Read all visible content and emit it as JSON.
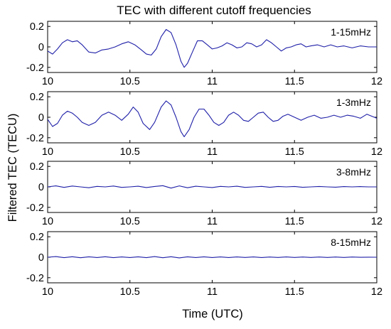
{
  "chart_data": {
    "type": "line",
    "title": "TEC with different cutoff frequencies",
    "xlabel": "Time (UTC)",
    "ylabel": "Filtered TEC (TECU)",
    "xlim": [
      10,
      12
    ],
    "ylim": [
      -0.25,
      0.25
    ],
    "x_ticks": [
      10,
      10.5,
      11,
      11.5,
      12
    ],
    "x_tick_labels": [
      "10",
      "10.5",
      "11",
      "11.5",
      "12"
    ],
    "y_ticks": [
      0.2,
      0,
      -0.2
    ],
    "y_tick_labels": [
      "0.2",
      "0",
      "-0.2"
    ],
    "line_color": "#1f1fa8",
    "grid": false,
    "legend": "none",
    "panels": [
      {
        "label": "1-15mHz",
        "points": [
          [
            10.0,
            -0.04
          ],
          [
            10.03,
            -0.07
          ],
          [
            10.06,
            -0.02
          ],
          [
            10.09,
            0.04
          ],
          [
            10.12,
            0.07
          ],
          [
            10.15,
            0.05
          ],
          [
            10.18,
            0.06
          ],
          [
            10.21,
            0.02
          ],
          [
            10.25,
            -0.05
          ],
          [
            10.29,
            -0.06
          ],
          [
            10.33,
            -0.03
          ],
          [
            10.37,
            -0.02
          ],
          [
            10.41,
            0.0
          ],
          [
            10.45,
            0.03
          ],
          [
            10.49,
            0.05
          ],
          [
            10.53,
            0.02
          ],
          [
            10.57,
            -0.03
          ],
          [
            10.6,
            -0.07
          ],
          [
            10.63,
            -0.08
          ],
          [
            10.66,
            -0.02
          ],
          [
            10.69,
            0.1
          ],
          [
            10.72,
            0.17
          ],
          [
            10.75,
            0.14
          ],
          [
            10.78,
            0.02
          ],
          [
            10.81,
            -0.14
          ],
          [
            10.83,
            -0.2
          ],
          [
            10.85,
            -0.16
          ],
          [
            10.88,
            -0.05
          ],
          [
            10.91,
            0.06
          ],
          [
            10.94,
            0.06
          ],
          [
            10.97,
            0.02
          ],
          [
            11.0,
            -0.02
          ],
          [
            11.03,
            -0.01
          ],
          [
            11.06,
            0.01
          ],
          [
            11.09,
            0.04
          ],
          [
            11.12,
            0.02
          ],
          [
            11.15,
            -0.01
          ],
          [
            11.18,
            0.0
          ],
          [
            11.21,
            0.04
          ],
          [
            11.24,
            0.03
          ],
          [
            11.27,
            0.0
          ],
          [
            11.3,
            0.02
          ],
          [
            11.33,
            0.07
          ],
          [
            11.36,
            0.04
          ],
          [
            11.39,
            0.0
          ],
          [
            11.42,
            -0.04
          ],
          [
            11.45,
            -0.01
          ],
          [
            11.48,
            0.0
          ],
          [
            11.51,
            0.02
          ],
          [
            11.54,
            0.03
          ],
          [
            11.57,
            0.0
          ],
          [
            11.6,
            0.01
          ],
          [
            11.64,
            0.02
          ],
          [
            11.68,
            0.0
          ],
          [
            11.72,
            0.02
          ],
          [
            11.76,
            0.0
          ],
          [
            11.8,
            0.01
          ],
          [
            11.85,
            -0.01
          ],
          [
            11.9,
            0.01
          ],
          [
            11.95,
            0.0
          ],
          [
            12.0,
            0.0
          ]
        ]
      },
      {
        "label": "1-3mHz",
        "points": [
          [
            10.0,
            -0.02
          ],
          [
            10.03,
            -0.09
          ],
          [
            10.06,
            -0.06
          ],
          [
            10.09,
            0.02
          ],
          [
            10.12,
            0.06
          ],
          [
            10.15,
            0.04
          ],
          [
            10.18,
            0.0
          ],
          [
            10.21,
            -0.05
          ],
          [
            10.25,
            -0.08
          ],
          [
            10.29,
            -0.05
          ],
          [
            10.33,
            0.02
          ],
          [
            10.37,
            0.05
          ],
          [
            10.41,
            0.02
          ],
          [
            10.45,
            -0.03
          ],
          [
            10.49,
            0.03
          ],
          [
            10.52,
            0.1
          ],
          [
            10.55,
            0.05
          ],
          [
            10.58,
            -0.06
          ],
          [
            10.62,
            -0.12
          ],
          [
            10.65,
            -0.05
          ],
          [
            10.69,
            0.1
          ],
          [
            10.72,
            0.16
          ],
          [
            10.75,
            0.12
          ],
          [
            10.78,
            0.0
          ],
          [
            10.81,
            -0.14
          ],
          [
            10.83,
            -0.19
          ],
          [
            10.86,
            -0.12
          ],
          [
            10.89,
            0.0
          ],
          [
            10.92,
            0.08
          ],
          [
            10.95,
            0.08
          ],
          [
            10.98,
            0.02
          ],
          [
            11.01,
            -0.05
          ],
          [
            11.04,
            -0.08
          ],
          [
            11.07,
            -0.05
          ],
          [
            11.1,
            0.02
          ],
          [
            11.13,
            0.05
          ],
          [
            11.16,
            0.02
          ],
          [
            11.19,
            -0.03
          ],
          [
            11.22,
            -0.04
          ],
          [
            11.25,
            0.0
          ],
          [
            11.28,
            0.04
          ],
          [
            11.31,
            0.05
          ],
          [
            11.34,
            0.0
          ],
          [
            11.37,
            -0.04
          ],
          [
            11.4,
            -0.03
          ],
          [
            11.43,
            0.01
          ],
          [
            11.46,
            0.03
          ],
          [
            11.5,
            0.0
          ],
          [
            11.54,
            -0.03
          ],
          [
            11.58,
            0.0
          ],
          [
            11.62,
            0.02
          ],
          [
            11.66,
            -0.01
          ],
          [
            11.7,
            0.0
          ],
          [
            11.74,
            0.02
          ],
          [
            11.78,
            0.0
          ],
          [
            11.82,
            0.02
          ],
          [
            11.86,
            0.01
          ],
          [
            11.9,
            -0.01
          ],
          [
            11.94,
            0.03
          ],
          [
            11.97,
            0.01
          ],
          [
            12.0,
            -0.01
          ]
        ]
      },
      {
        "label": "3-8mHz",
        "points": [
          [
            10.0,
            0.0
          ],
          [
            10.05,
            0.01
          ],
          [
            10.1,
            -0.005
          ],
          [
            10.15,
            0.008
          ],
          [
            10.2,
            0.0
          ],
          [
            10.25,
            -0.008
          ],
          [
            10.3,
            0.005
          ],
          [
            10.35,
            0.0
          ],
          [
            10.4,
            0.008
          ],
          [
            10.45,
            -0.005
          ],
          [
            10.5,
            0.0
          ],
          [
            10.55,
            0.006
          ],
          [
            10.6,
            -0.006
          ],
          [
            10.65,
            0.004
          ],
          [
            10.7,
            0.012
          ],
          [
            10.75,
            -0.012
          ],
          [
            10.8,
            0.01
          ],
          [
            10.85,
            -0.008
          ],
          [
            10.9,
            0.006
          ],
          [
            10.95,
            0.0
          ],
          [
            11.0,
            -0.006
          ],
          [
            11.05,
            0.005
          ],
          [
            11.1,
            0.0
          ],
          [
            11.15,
            0.006
          ],
          [
            11.2,
            -0.005
          ],
          [
            11.25,
            0.0
          ],
          [
            11.3,
            0.005
          ],
          [
            11.35,
            -0.004
          ],
          [
            11.4,
            0.004
          ],
          [
            11.45,
            0.0
          ],
          [
            11.5,
            0.004
          ],
          [
            11.55,
            -0.004
          ],
          [
            11.6,
            0.0
          ],
          [
            11.65,
            0.004
          ],
          [
            11.7,
            0.0
          ],
          [
            11.75,
            -0.003
          ],
          [
            11.8,
            0.003
          ],
          [
            11.85,
            0.0
          ],
          [
            11.9,
            0.003
          ],
          [
            11.95,
            0.0
          ],
          [
            12.0,
            0.0
          ]
        ]
      },
      {
        "label": "8-15mHz",
        "points": [
          [
            10.0,
            0.0
          ],
          [
            10.05,
            0.006
          ],
          [
            10.1,
            -0.004
          ],
          [
            10.15,
            0.005
          ],
          [
            10.2,
            -0.005
          ],
          [
            10.25,
            0.004
          ],
          [
            10.3,
            -0.003
          ],
          [
            10.35,
            0.005
          ],
          [
            10.4,
            -0.004
          ],
          [
            10.45,
            0.003
          ],
          [
            10.5,
            -0.003
          ],
          [
            10.55,
            0.004
          ],
          [
            10.6,
            -0.004
          ],
          [
            10.65,
            0.006
          ],
          [
            10.7,
            -0.005
          ],
          [
            10.75,
            0.005
          ],
          [
            10.8,
            -0.006
          ],
          [
            10.85,
            0.004
          ],
          [
            10.9,
            -0.003
          ],
          [
            10.95,
            0.004
          ],
          [
            11.0,
            -0.003
          ],
          [
            11.05,
            0.003
          ],
          [
            11.1,
            -0.003
          ],
          [
            11.15,
            0.003
          ],
          [
            11.2,
            -0.002
          ],
          [
            11.25,
            0.003
          ],
          [
            11.3,
            -0.003
          ],
          [
            11.35,
            0.002
          ],
          [
            11.4,
            -0.002
          ],
          [
            11.45,
            0.003
          ],
          [
            11.5,
            -0.002
          ],
          [
            11.55,
            0.002
          ],
          [
            11.6,
            -0.002
          ],
          [
            11.65,
            0.002
          ],
          [
            11.7,
            -0.002
          ],
          [
            11.75,
            0.002
          ],
          [
            11.8,
            -0.002
          ],
          [
            11.85,
            0.002
          ],
          [
            11.9,
            -0.001
          ],
          [
            11.95,
            0.001
          ],
          [
            12.0,
            0.0
          ]
        ]
      }
    ]
  }
}
